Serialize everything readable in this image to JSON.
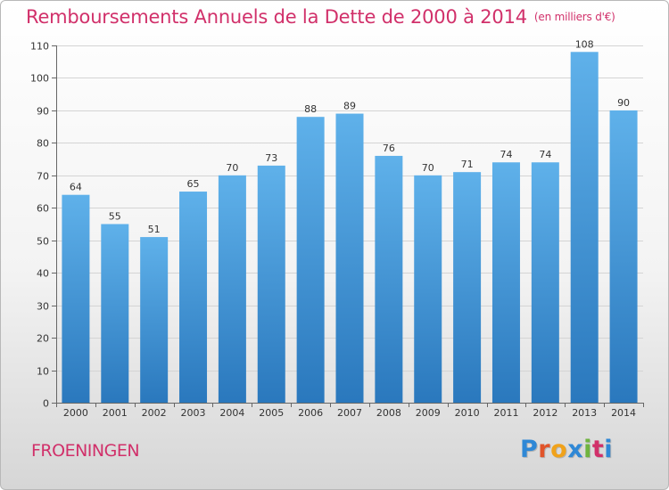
{
  "header": {
    "title": "Remboursements Annuels de la Dette de 2000 à 2014",
    "unit_note": "(en milliers d'€)"
  },
  "footer": {
    "city": "FROENINGEN",
    "logo": [
      "P",
      "r",
      "o",
      "x",
      "i",
      "t",
      "i"
    ],
    "logo_colors": [
      "#2f88d6",
      "#e1542a",
      "#f0a21b",
      "#2f88d6",
      "#6fb43f",
      "#d1306a",
      "#2f88d6"
    ]
  },
  "chart_data": {
    "type": "bar",
    "title": "Remboursements Annuels de la Dette de 2000 à 2014",
    "subtitle": "(en milliers d'€)",
    "xlabel": "",
    "ylabel": "",
    "categories": [
      "2000",
      "2001",
      "2002",
      "2003",
      "2004",
      "2005",
      "2006",
      "2007",
      "2008",
      "2009",
      "2010",
      "2011",
      "2012",
      "2013",
      "2014"
    ],
    "values": [
      64,
      55,
      51,
      65,
      70,
      73,
      88,
      89,
      76,
      70,
      71,
      74,
      74,
      108,
      90
    ],
    "ylim": [
      0,
      110
    ],
    "yticks": [
      0,
      10,
      20,
      30,
      40,
      50,
      60,
      70,
      80,
      90,
      100,
      110
    ],
    "grid": true,
    "bar_color_top": "#5fb1ea",
    "bar_color_bottom": "#2a78bd"
  }
}
